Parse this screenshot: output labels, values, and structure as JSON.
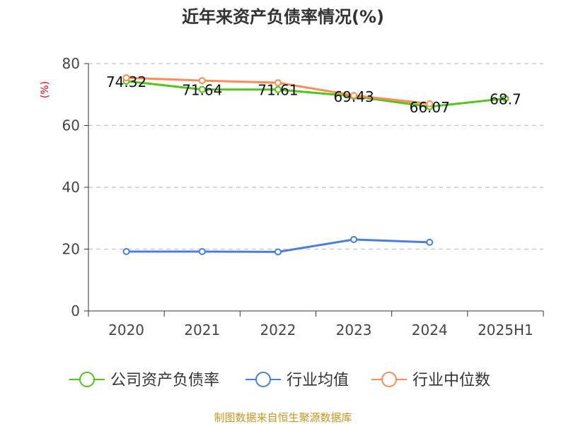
{
  "chart_data": {
    "type": "line",
    "title": "近年来资产负债率情况(%)",
    "ylabel": "(%)",
    "xlabel": "",
    "ylim": [
      0,
      80
    ],
    "yticks": [
      0,
      20,
      40,
      60,
      80
    ],
    "grid": true,
    "legend_position": "bottom",
    "categories": [
      "2020",
      "2021",
      "2022",
      "2023",
      "2024",
      "2025H1"
    ],
    "series": [
      {
        "name": "公司资产负债率",
        "color": "#52c41a",
        "values": [
          74.32,
          71.64,
          71.61,
          69.43,
          66.07,
          68.7
        ],
        "labels": [
          "74.32",
          "71.64",
          "71.61",
          "69.43",
          "66.07",
          "68.7"
        ]
      },
      {
        "name": "行业均值",
        "color": "#4a7ee0",
        "values": [
          19.2,
          19.2,
          19.1,
          23.1,
          22.2,
          null
        ]
      },
      {
        "name": "行业中位数",
        "color": "#ff8c55",
        "values": [
          75.4,
          74.5,
          73.8,
          69.7,
          67.0,
          null
        ]
      }
    ]
  },
  "source": "制图数据来自恒生聚源数据库",
  "source_color": "#c8961e"
}
